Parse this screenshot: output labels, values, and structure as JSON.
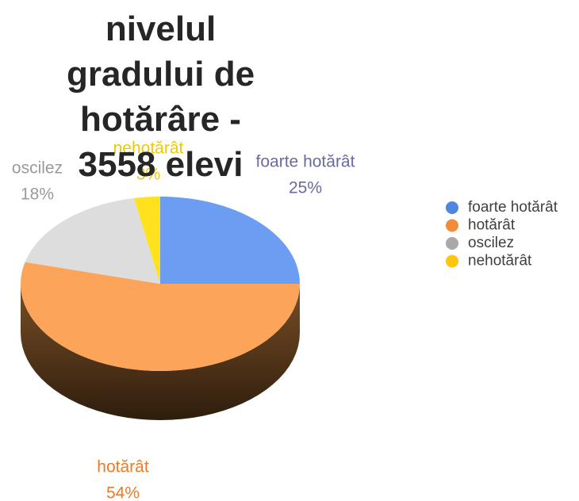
{
  "chart_data": {
    "type": "pie3d",
    "title": "nivelul gradului de hotărâre - 3558 elevi",
    "categories": [
      "foarte hotărât",
      "hotărât",
      "oscilez",
      "nehotărât"
    ],
    "values": [
      25,
      54,
      18,
      3
    ],
    "value_labels": [
      "25%",
      "54%",
      "18%",
      "3%"
    ],
    "colors": [
      "#4f86e0",
      "#f28c3a",
      "#a9a9a9",
      "#ffc510"
    ],
    "slice_colors": [
      "#6b9ef2",
      "#fca55a",
      "#dddddd",
      "#ffe11e"
    ],
    "label_colors": [
      "#6a6aa2",
      "#ec7a26",
      "#9a9a9a",
      "#f0c800"
    ],
    "legend": "right"
  }
}
